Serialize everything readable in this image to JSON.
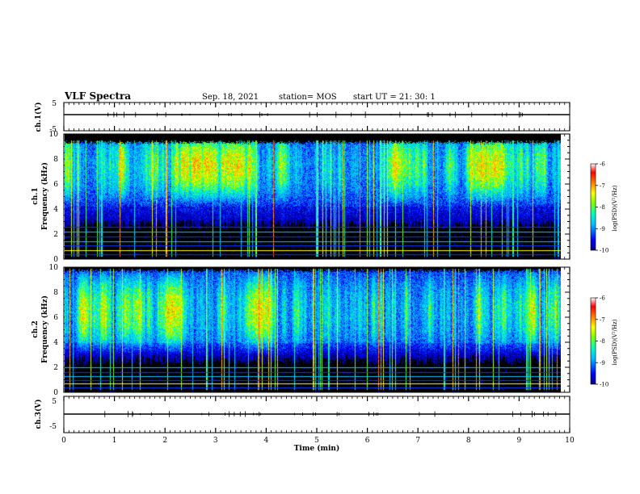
{
  "header": {
    "title": "VLF Spectra",
    "date": "Sep. 18, 2021",
    "station": "station= MOS",
    "start": "start  UT =   21: 30: 1"
  },
  "chart_data": [
    {
      "type": "line",
      "name": "ch1-waveform",
      "ylabel": "ch.1(V)",
      "ylim": [
        -5,
        5
      ],
      "yticks": [
        "5",
        "-5"
      ],
      "x": [
        0,
        10
      ],
      "values": [
        0,
        0
      ],
      "xlim": [
        0,
        10
      ]
    },
    {
      "type": "heatmap",
      "name": "ch1-spectrogram",
      "ylabel": "ch.1",
      "ylabel2": "Frequency (kHz)",
      "ylim": [
        0,
        10
      ],
      "yticks": [
        "0",
        "2",
        "4",
        "6",
        "8",
        "10"
      ],
      "xlim": [
        0,
        9.85
      ],
      "colorbar": {
        "range": [
          -10,
          -6
        ],
        "ticks": [
          "-6",
          "-7",
          "-8",
          "-9",
          "-10"
        ],
        "label": "log(PSD)(V²/Hz)"
      },
      "band_khz": [
        3.2,
        9.2
      ],
      "peak_khz": 7.5,
      "hum_lines_khz": [
        0.4,
        0.7,
        1.1,
        1.4,
        1.8,
        2.2,
        2.6
      ]
    },
    {
      "type": "heatmap",
      "name": "ch2-spectrogram",
      "ylabel": "ch.2",
      "ylabel2": "Frequency (kHz)",
      "ylim": [
        0,
        10
      ],
      "yticks": [
        "0",
        "2",
        "4",
        "6",
        "8",
        "10"
      ],
      "xlim": [
        0,
        9.85
      ],
      "colorbar": {
        "range": [
          -10,
          -6
        ],
        "ticks": [
          "-6",
          "-7",
          "-8",
          "-9",
          "-10"
        ],
        "label": "log(PSD)(V²/Hz)"
      },
      "band_khz": [
        3.0,
        9.6
      ],
      "peak_khz": 6.5,
      "hum_lines_khz": [
        0.4,
        0.7,
        1.0,
        1.3,
        1.6,
        2.0
      ]
    },
    {
      "type": "line",
      "name": "ch3-waveform",
      "ylabel": "ch.3(V)",
      "ylim": [
        -5,
        5
      ],
      "yticks": [
        "5",
        "-5"
      ],
      "x": [
        0,
        10
      ],
      "values": [
        0,
        0
      ],
      "xlim": [
        0,
        10
      ]
    }
  ],
  "xaxis": {
    "label": "Time (min)",
    "ticks": [
      "0",
      "1",
      "2",
      "3",
      "4",
      "5",
      "6",
      "7",
      "8",
      "9",
      "10"
    ],
    "range": [
      0,
      10
    ]
  },
  "colors": {
    "background": "#000000",
    "colormap": [
      "#00007f",
      "#0000ff",
      "#00bfff",
      "#00ffbf",
      "#7fff00",
      "#ffff00",
      "#ff7f00",
      "#ff0000",
      "#ffffff"
    ]
  }
}
